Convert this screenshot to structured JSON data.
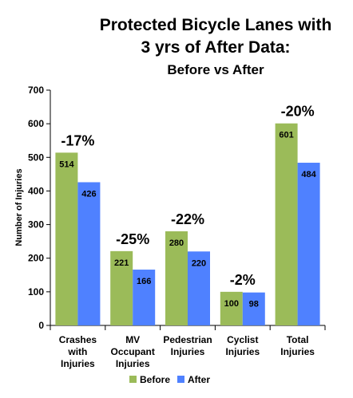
{
  "chart_data": {
    "type": "bar",
    "title": [
      "Protected Bicycle Lanes with",
      "3 yrs of After Data:",
      "Before vs After"
    ],
    "ylabel": "Number of Injuries",
    "xlabel": "",
    "ylim": [
      0,
      700
    ],
    "yticks": [
      0,
      100,
      200,
      300,
      400,
      500,
      600,
      700
    ],
    "grid": false,
    "legend_position": "bottom",
    "categories": [
      [
        "Crashes",
        "with",
        "Injuries"
      ],
      [
        "MV",
        "Occupant",
        "Injuries"
      ],
      [
        "Pedestrian",
        "Injuries"
      ],
      [
        "Cyclist",
        "Injuries"
      ],
      [
        "Total",
        "Injuries"
      ]
    ],
    "series": [
      {
        "name": "Before",
        "color": "#9bbb59",
        "values": [
          514,
          221,
          280,
          100,
          601
        ]
      },
      {
        "name": "After",
        "color": "#4f81ff",
        "values": [
          426,
          166,
          220,
          98,
          484
        ]
      }
    ],
    "annotations": [
      "-17%",
      "-25%",
      "-22%",
      "-2%",
      "-20%"
    ]
  }
}
